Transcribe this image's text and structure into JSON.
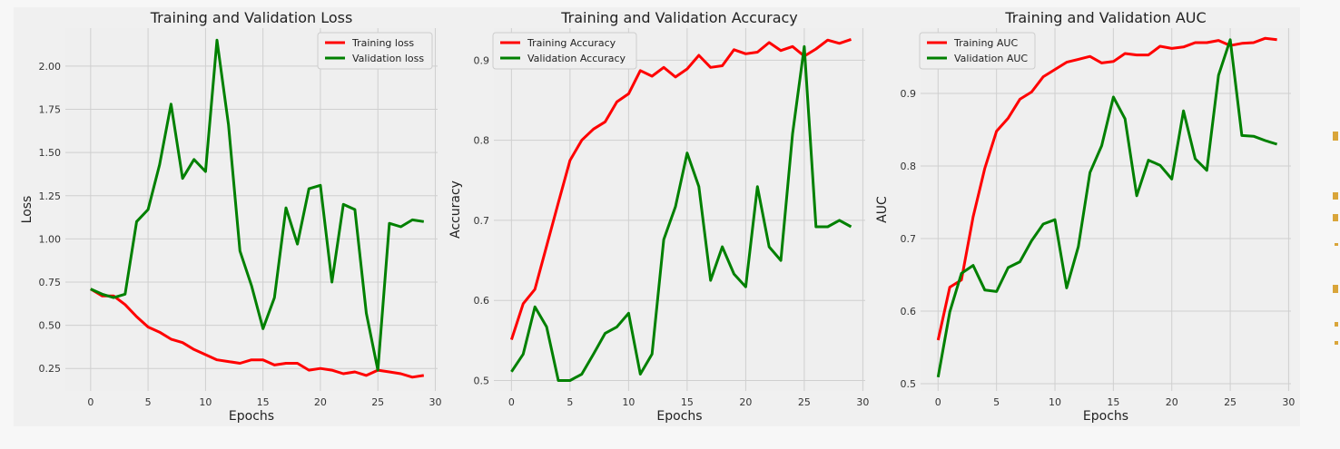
{
  "chart_data": [
    {
      "type": "line",
      "title": "Training and Validation Loss",
      "xlabel": "Epochs",
      "ylabel": "Loss",
      "xlim": [
        -2.2,
        30.2
      ],
      "ylim": [
        0.12,
        2.22
      ],
      "xticks": [
        0,
        5,
        10,
        15,
        20,
        25,
        30
      ],
      "yticks": [
        0.25,
        0.5,
        0.75,
        1.0,
        1.25,
        1.5,
        1.75,
        2.0
      ],
      "ytick_labels": [
        "0.25",
        "0.50",
        "0.75",
        "1.00",
        "1.25",
        "1.50",
        "1.75",
        "2.00"
      ],
      "grid": true,
      "legend_position": "top-right",
      "x": [
        0,
        1,
        2,
        3,
        4,
        5,
        6,
        7,
        8,
        9,
        10,
        11,
        12,
        13,
        14,
        15,
        16,
        17,
        18,
        19,
        20,
        21,
        22,
        23,
        24,
        25,
        26,
        27,
        28,
        29
      ],
      "series": [
        {
          "name": "Training loss",
          "color": "#ff0000",
          "values": [
            0.71,
            0.67,
            0.67,
            0.62,
            0.55,
            0.49,
            0.46,
            0.42,
            0.4,
            0.36,
            0.33,
            0.3,
            0.29,
            0.28,
            0.3,
            0.3,
            0.27,
            0.28,
            0.28,
            0.24,
            0.25,
            0.24,
            0.22,
            0.23,
            0.21,
            0.24,
            0.23,
            0.22,
            0.2,
            0.21
          ]
        },
        {
          "name": "Validation loss",
          "color": "#008000",
          "values": [
            0.71,
            0.68,
            0.66,
            0.68,
            1.1,
            1.17,
            1.43,
            1.78,
            1.35,
            1.46,
            1.39,
            2.15,
            1.66,
            0.93,
            0.73,
            0.48,
            0.66,
            1.18,
            0.97,
            1.29,
            1.31,
            0.75,
            1.2,
            1.17,
            0.57,
            0.24,
            1.09,
            1.07,
            1.11,
            1.1
          ]
        }
      ]
    },
    {
      "type": "line",
      "title": "Training and Validation Accuracy",
      "xlabel": "Epochs",
      "ylabel": "Accuracy",
      "xlim": [
        -1.5,
        30.2
      ],
      "ylim": [
        0.487,
        0.94
      ],
      "xticks": [
        0,
        5,
        10,
        15,
        20,
        25,
        30
      ],
      "yticks": [
        0.5,
        0.6,
        0.7,
        0.8,
        0.9
      ],
      "ytick_labels": [
        "0.5",
        "0.6",
        "0.7",
        "0.8",
        "0.9"
      ],
      "grid": true,
      "legend_position": "top-left",
      "x": [
        0,
        1,
        2,
        3,
        4,
        5,
        6,
        7,
        8,
        9,
        10,
        11,
        12,
        13,
        14,
        15,
        16,
        17,
        18,
        19,
        20,
        21,
        22,
        23,
        24,
        25,
        26,
        27,
        28,
        29
      ],
      "series": [
        {
          "name": "Training Accuracy",
          "color": "#ff0000",
          "values": [
            0.551,
            0.596,
            0.614,
            0.668,
            0.722,
            0.775,
            0.8,
            0.814,
            0.823,
            0.848,
            0.858,
            0.887,
            0.88,
            0.891,
            0.879,
            0.889,
            0.906,
            0.891,
            0.893,
            0.913,
            0.908,
            0.91,
            0.922,
            0.912,
            0.917,
            0.905,
            0.914,
            0.925,
            0.921,
            0.926
          ]
        },
        {
          "name": "Validation Accuracy",
          "color": "#008000",
          "values": [
            0.511,
            0.533,
            0.592,
            0.567,
            0.5,
            0.5,
            0.508,
            0.533,
            0.559,
            0.567,
            0.584,
            0.508,
            0.533,
            0.676,
            0.717,
            0.784,
            0.742,
            0.625,
            0.667,
            0.633,
            0.617,
            0.742,
            0.667,
            0.65,
            0.808,
            0.917,
            0.692,
            0.692,
            0.7,
            0.692
          ]
        }
      ]
    },
    {
      "type": "line",
      "title": "Training and Validation AUC",
      "xlabel": "Epochs",
      "ylabel": "AUC",
      "xlim": [
        -1.5,
        30.2
      ],
      "ylim": [
        0.49,
        0.99
      ],
      "xticks": [
        0,
        5,
        10,
        15,
        20,
        25,
        30
      ],
      "yticks": [
        0.5,
        0.6,
        0.7,
        0.8,
        0.9
      ],
      "ytick_labels": [
        "0.5",
        "0.6",
        "0.7",
        "0.8",
        "0.9"
      ],
      "grid": true,
      "legend_position": "top-left",
      "x": [
        0,
        1,
        2,
        3,
        4,
        5,
        6,
        7,
        8,
        9,
        10,
        11,
        12,
        13,
        14,
        15,
        16,
        17,
        18,
        19,
        20,
        21,
        22,
        23,
        24,
        25,
        26,
        27,
        28,
        29
      ],
      "series": [
        {
          "name": "Training AUC",
          "color": "#ff0000",
          "values": [
            0.56,
            0.633,
            0.643,
            0.73,
            0.797,
            0.848,
            0.866,
            0.892,
            0.902,
            0.923,
            0.933,
            0.943,
            0.947,
            0.951,
            0.942,
            0.944,
            0.955,
            0.953,
            0.953,
            0.965,
            0.962,
            0.964,
            0.97,
            0.97,
            0.973,
            0.966,
            0.969,
            0.97,
            0.976,
            0.974
          ]
        },
        {
          "name": "Validation AUC",
          "color": "#008000",
          "values": [
            0.509,
            0.599,
            0.652,
            0.663,
            0.629,
            0.627,
            0.66,
            0.668,
            0.697,
            0.72,
            0.726,
            0.632,
            0.689,
            0.791,
            0.828,
            0.895,
            0.865,
            0.759,
            0.808,
            0.801,
            0.782,
            0.876,
            0.81,
            0.794,
            0.925,
            0.974,
            0.842,
            0.841,
            0.835,
            0.83
          ]
        }
      ]
    }
  ]
}
